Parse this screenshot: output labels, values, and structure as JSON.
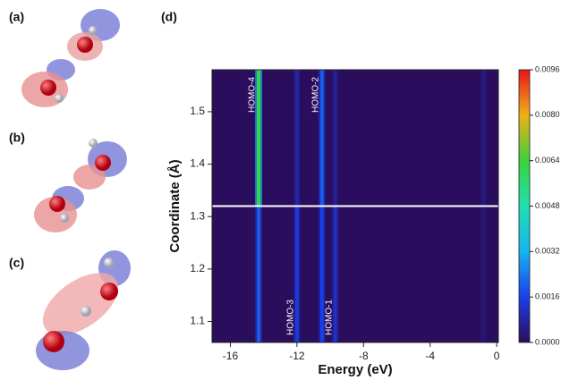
{
  "panels": {
    "a": "(a)",
    "b": "(b)",
    "c": "(c)"
  },
  "chart_data": {
    "type": "heatmap",
    "label": "(d)",
    "xlabel": "Energy (eV)",
    "ylabel": "Coordinate (Å)",
    "x": [
      -14.3,
      -12.0,
      -10.5,
      -9.7,
      -0.8
    ],
    "band_labels": [
      "HOMO-4",
      "HOMO-3",
      "HOMO-2",
      "HOMO-1",
      null
    ],
    "rows": [
      {
        "y": [
          1.32,
          1.58
        ],
        "values": [
          0.0062,
          0.0008,
          0.002,
          0.0006,
          0.0004
        ]
      },
      {
        "y": [
          1.06,
          1.32
        ],
        "values": [
          0.002,
          0.0014,
          0.0016,
          0.0012,
          0.0003
        ]
      }
    ],
    "xlim": [
      -17.1,
      0.1
    ],
    "xticks": [
      -16,
      -12,
      -8,
      -4,
      0
    ],
    "ylim": [
      1.06,
      1.58
    ],
    "yticks": [
      1.1,
      1.2,
      1.3,
      1.4,
      1.5
    ],
    "clim": [
      0,
      0.0096
    ],
    "cticks": [
      {
        "value": 0,
        "label": "0.0000"
      },
      {
        "value": 0.0016,
        "label": "0.0016"
      },
      {
        "value": 0.0032,
        "label": "0.0032"
      },
      {
        "value": 0.0048,
        "label": "0.0048"
      },
      {
        "value": 0.0064,
        "label": "0.0064"
      },
      {
        "value": 0.008,
        "label": "0.0080"
      },
      {
        "value": 0.0096,
        "label": "0.0096"
      }
    ],
    "colormap": [
      "#2a0d5c",
      "#1a3fe8",
      "#16b4f0",
      "#20e0b0",
      "#3bd23c",
      "#f0b016",
      "#e8141a"
    ],
    "split_color": "#ffffff"
  }
}
